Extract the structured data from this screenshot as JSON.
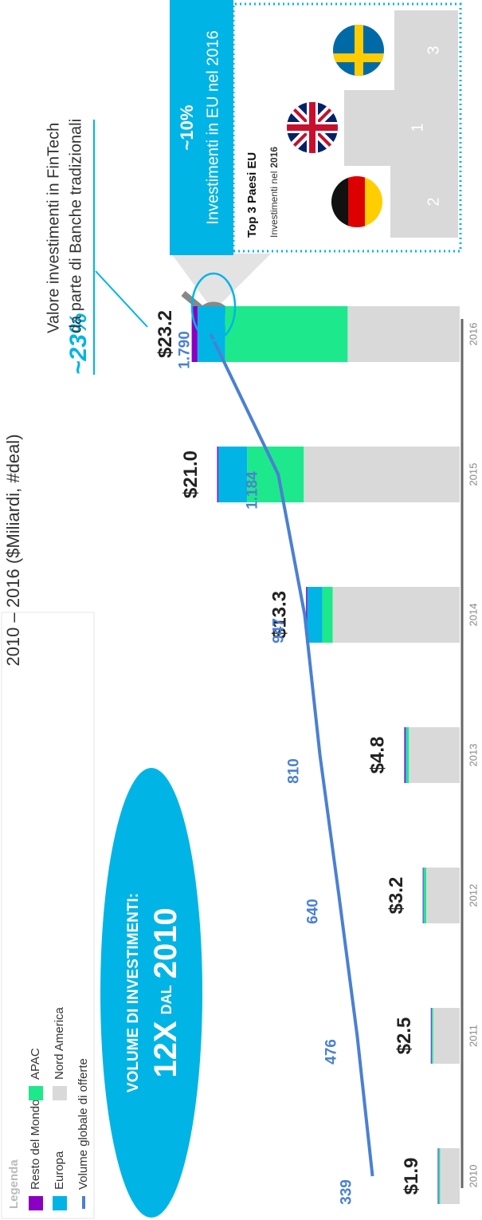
{
  "chart_data": {
    "type": "bar",
    "title": "2010 – 2016 ($Miliardi, #deal)",
    "categories": [
      "2010",
      "2011",
      "2012",
      "2013",
      "2014",
      "2015",
      "2016"
    ],
    "series": [
      {
        "name": "Nord America",
        "color": "#d9d9d9",
        "values": [
          1.7,
          2.3,
          2.9,
          4.4,
          11.0,
          13.5,
          9.7
        ]
      },
      {
        "name": "APAC",
        "color": "#1ee88c",
        "values": [
          0.1,
          0.1,
          0.2,
          0.2,
          0.9,
          4.9,
          10.6
        ]
      },
      {
        "name": "Europa",
        "color": "#00b4e6",
        "values": [
          0.05,
          0.05,
          0.05,
          0.1,
          1.3,
          2.5,
          2.4
        ]
      },
      {
        "name": "Resto del Mondo",
        "color": "#8a00c2",
        "values": [
          0.05,
          0.05,
          0.05,
          0.1,
          0.1,
          0.1,
          0.5
        ]
      }
    ],
    "totals": {
      "values": [
        1.9,
        2.5,
        3.2,
        4.8,
        13.3,
        21.0,
        23.2
      ],
      "value_labels": [
        "$1.9",
        "$2.5",
        "$3.2",
        "$4.8",
        "$13.3",
        "$21.0",
        "$23.2"
      ]
    },
    "line_series": {
      "name": "Volume globale di offerte",
      "color": "#4a80d2",
      "axis": "y2",
      "values": [
        339,
        476,
        640,
        810,
        947,
        1184,
        1790
      ],
      "value_labels": [
        "339",
        "476",
        "640",
        "810",
        "947",
        "1.184",
        "1.790"
      ]
    },
    "legend_title": "Legenda",
    "badge": {
      "line1": "VOLUME DI INVESTIMENTI:",
      "multiplier": "12X",
      "since": "DAL",
      "year": "2010"
    },
    "callout": {
      "value": "~23%",
      "line1": "Valore investimenti in FinTech",
      "line2": "da parte di Banche tradizionali"
    },
    "inset": {
      "value": "~10%",
      "subtitle": "Investimenti in EU nel 2016",
      "title": "Top 3 Paesi EU",
      "note": "Investimenti nel",
      "note_year": "2016",
      "podium": [
        "2",
        "1",
        "3"
      ]
    }
  }
}
